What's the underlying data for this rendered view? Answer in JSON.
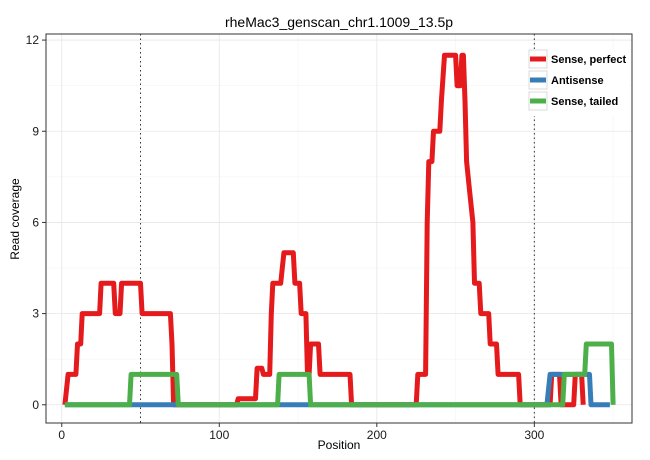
{
  "chart_data": {
    "type": "line",
    "title": "rheMac3_genscan_chr1.1009_13.5p",
    "xlabel": "Position",
    "ylabel": "Read coverage",
    "xlim": [
      -10,
      362
    ],
    "ylim": [
      -0.6,
      12.2
    ],
    "x_ticks": [
      0,
      100,
      200,
      300
    ],
    "y_ticks": [
      0,
      3,
      6,
      9,
      12
    ],
    "grid": true,
    "legend_position": "top-right",
    "vlines": [
      50,
      300
    ],
    "series": [
      {
        "name": "Sense, perfect",
        "color": "#E41A1C",
        "points": [
          [
            2,
            0
          ],
          [
            4,
            1
          ],
          [
            9,
            1
          ],
          [
            10,
            2
          ],
          [
            12,
            2
          ],
          [
            13,
            3
          ],
          [
            24,
            3
          ],
          [
            25,
            4
          ],
          [
            33,
            4
          ],
          [
            34,
            3
          ],
          [
            37,
            3
          ],
          [
            38,
            4
          ],
          [
            50,
            4
          ],
          [
            51,
            3
          ],
          [
            69,
            3
          ],
          [
            70,
            2
          ],
          [
            71,
            0
          ],
          [
            111,
            0
          ],
          [
            112,
            0.2
          ],
          [
            123,
            0.2
          ],
          [
            124,
            1.2
          ],
          [
            127,
            1.2
          ],
          [
            128,
            1
          ],
          [
            132,
            1
          ],
          [
            133,
            3
          ],
          [
            134,
            4
          ],
          [
            139,
            4
          ],
          [
            140,
            4.5
          ],
          [
            141,
            5
          ],
          [
            147,
            5
          ],
          [
            148,
            4
          ],
          [
            151,
            4
          ],
          [
            152,
            3
          ],
          [
            155,
            3
          ],
          [
            156,
            1
          ],
          [
            157,
            1
          ],
          [
            158,
            2
          ],
          [
            163,
            2
          ],
          [
            164,
            1
          ],
          [
            183,
            1
          ],
          [
            184,
            0
          ],
          [
            225,
            0
          ],
          [
            226,
            1
          ],
          [
            231,
            1
          ],
          [
            232,
            6
          ],
          [
            233,
            8
          ],
          [
            235,
            8
          ],
          [
            236,
            9
          ],
          [
            240,
            9
          ],
          [
            241,
            10
          ],
          [
            243,
            11.5
          ],
          [
            250,
            11.5
          ],
          [
            251,
            10.5
          ],
          [
            253,
            10.5
          ],
          [
            254,
            11.5
          ],
          [
            255,
            11.5
          ],
          [
            256,
            10
          ],
          [
            257,
            8
          ],
          [
            259,
            7
          ],
          [
            261,
            6
          ],
          [
            262,
            4
          ],
          [
            265,
            4
          ],
          [
            266,
            3
          ],
          [
            271,
            3
          ],
          [
            272,
            2
          ],
          [
            276,
            2
          ],
          [
            277,
            1
          ],
          [
            290,
            1
          ],
          [
            291,
            0
          ],
          [
            310,
            0
          ],
          [
            311,
            1
          ],
          [
            316,
            1
          ],
          [
            317,
            0
          ],
          [
            325,
            0
          ],
          [
            326,
            1
          ],
          [
            330,
            1
          ],
          [
            331,
            0
          ]
        ]
      },
      {
        "name": "Antisense",
        "color": "#377EB8",
        "points": [
          [
            2,
            0
          ],
          [
            308,
            0
          ],
          [
            309,
            0.5
          ],
          [
            310,
            1
          ],
          [
            335,
            1
          ],
          [
            336,
            0
          ],
          [
            348,
            0
          ]
        ]
      },
      {
        "name": "Sense, tailed",
        "color": "#4DAF4A",
        "points": [
          [
            2,
            0
          ],
          [
            43,
            0
          ],
          [
            44,
            1
          ],
          [
            73,
            1
          ],
          [
            74,
            0
          ],
          [
            137,
            0
          ],
          [
            138,
            1
          ],
          [
            157,
            1
          ],
          [
            158,
            0
          ],
          [
            318,
            0
          ],
          [
            319,
            1
          ],
          [
            331,
            1
          ],
          [
            332,
            1
          ],
          [
            333,
            2
          ],
          [
            349,
            2
          ],
          [
            350,
            0
          ]
        ]
      }
    ]
  }
}
